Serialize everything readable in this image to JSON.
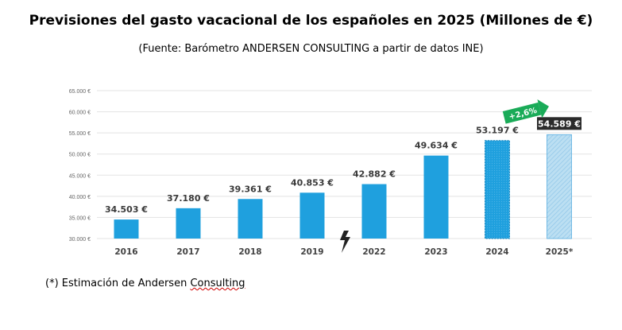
{
  "title": "Previsiones del gasto vacacional de los españoles en 2025 (Millones de €)",
  "subtitle": "(Fuente: Barómetro ANDERSEN CONSULTING a partir de datos INE)",
  "footnote": {
    "prefix": "(*) Estimación de Andersen ",
    "underlined": "Consulting"
  },
  "colors": {
    "bar": "#1fa0de",
    "estimate_fill": "#bcdff2",
    "estimate_stroke": "#5aaee0",
    "badge_bg": "#2b2b2b",
    "badge_text": "#ffffff",
    "growth_arrow": "#1aab58",
    "grid": "#e3e3e3",
    "axis_text": "#666666",
    "label_text": "#3a3a3a"
  },
  "chart_data": {
    "type": "bar",
    "categories": [
      "2016",
      "2017",
      "2018",
      "2019",
      "2022",
      "2023",
      "2024",
      "2025*"
    ],
    "values": [
      34503,
      37180,
      39361,
      40853,
      42882,
      49634,
      53197,
      54589
    ],
    "value_labels": [
      "34.503 €",
      "37.180 €",
      "39.361 €",
      "40.853 €",
      "42.882 €",
      "49.634 €",
      "53.197 €",
      "54.589 €"
    ],
    "yticks": [
      30000,
      35000,
      40000,
      45000,
      50000,
      55000,
      60000,
      65000
    ],
    "ytick_labels": [
      "30.000 €",
      "35.000 €",
      "40.000 €",
      "45.000 €",
      "50.000 €",
      "55.000 €",
      "60.000 €",
      "65.000 €"
    ],
    "ylim": [
      30000,
      65000
    ],
    "grid": true,
    "estimate_category": "2025*",
    "growth_annotation": "+2,6%",
    "break_marker": "lightning-bolt between 2019 and 2022"
  }
}
